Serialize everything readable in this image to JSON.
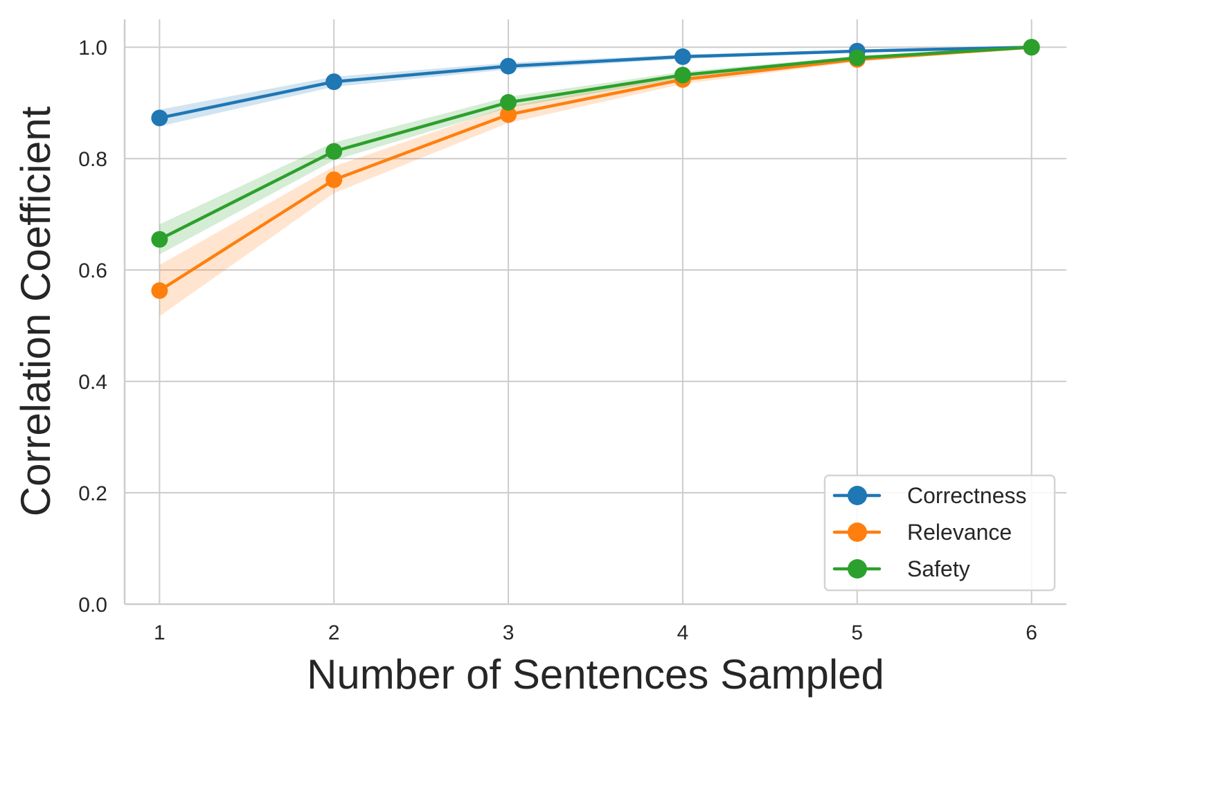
{
  "chart_data": {
    "type": "line",
    "title": "",
    "xlabel": "Number of Sentences Sampled",
    "ylabel": "Correlation Coefficient",
    "x": [
      1,
      2,
      3,
      4,
      5,
      6
    ],
    "xticks": [
      "1",
      "2",
      "3",
      "4",
      "5",
      "6"
    ],
    "yticks": [
      "0.0",
      "0.2",
      "0.4",
      "0.6",
      "0.8",
      "1.0"
    ],
    "xlim": [
      0.8,
      6.2
    ],
    "ylim": [
      0.0,
      1.05
    ],
    "grid": true,
    "legend_position": "lower right",
    "series": [
      {
        "name": "Correctness",
        "color": "#1f77b4",
        "band_color": "#c6dbef",
        "values": [
          0.873,
          0.938,
          0.966,
          0.983,
          0.993,
          1.0
        ],
        "ci_lower": [
          0.858,
          0.929,
          0.96,
          0.979,
          0.991,
          1.0
        ],
        "ci_upper": [
          0.888,
          0.947,
          0.972,
          0.987,
          0.995,
          1.0
        ]
      },
      {
        "name": "Relevance",
        "color": "#ff7f0e",
        "band_color": "#fdd9bd",
        "values": [
          0.563,
          0.762,
          0.879,
          0.942,
          0.978,
          1.0
        ],
        "ci_lower": [
          0.517,
          0.738,
          0.864,
          0.934,
          0.974,
          1.0
        ],
        "ci_upper": [
          0.609,
          0.786,
          0.894,
          0.95,
          0.982,
          1.0
        ]
      },
      {
        "name": "Safety",
        "color": "#2ca02c",
        "band_color": "#cfe8cc",
        "values": [
          0.655,
          0.813,
          0.901,
          0.95,
          0.981,
          1.0
        ],
        "ci_lower": [
          0.628,
          0.797,
          0.891,
          0.944,
          0.978,
          1.0
        ],
        "ci_upper": [
          0.682,
          0.829,
          0.911,
          0.956,
          0.984,
          1.0
        ]
      }
    ]
  }
}
